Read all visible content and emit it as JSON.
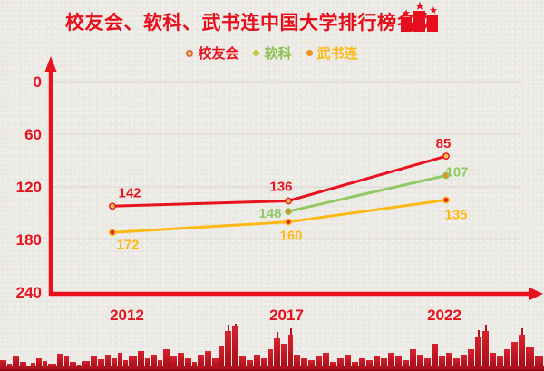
{
  "page": {
    "title": "校友会、软科、武书连中国大学排行榜名次"
  },
  "icons": {
    "podium": "podium-with-stars-icon",
    "skyline": "city-skyline-silhouette"
  },
  "colors": {
    "accent_red": "#e60e1c",
    "axis_red": "#e8121e",
    "green": "#8cc152",
    "yellow": "#fdb913",
    "gridline": "#d9d6d0",
    "skyline_red": "#c6121f",
    "background": "#edebe6"
  },
  "legend": {
    "items": [
      {
        "label": "校友会",
        "color": "#e8121e"
      },
      {
        "label": "软科",
        "color": "#8cc152"
      },
      {
        "label": "武书连",
        "color": "#fdb913"
      }
    ]
  },
  "chart_data": {
    "type": "line",
    "title": "校友会、软科、武书连中国大学排行榜名次",
    "x": [
      "2012",
      "2017",
      "2022"
    ],
    "series": [
      {
        "name": "校友会",
        "color": "#e8121e",
        "marker_fill": "#ffc34d",
        "values": [
          142,
          136,
          85
        ]
      },
      {
        "name": "软科",
        "color": "#90c964",
        "marker_fill": "#f08c1e",
        "values": [
          null,
          148,
          107
        ]
      },
      {
        "name": "武书连",
        "color": "#fdb913",
        "marker_fill": "#e8281e",
        "values": [
          172,
          160,
          135
        ]
      }
    ],
    "yticks": [
      0,
      60,
      120,
      180,
      240
    ],
    "ylim": [
      0,
      240
    ],
    "y_inverted": true,
    "grid": true,
    "legend_position": "top",
    "xlabel": "",
    "ylabel": ""
  }
}
